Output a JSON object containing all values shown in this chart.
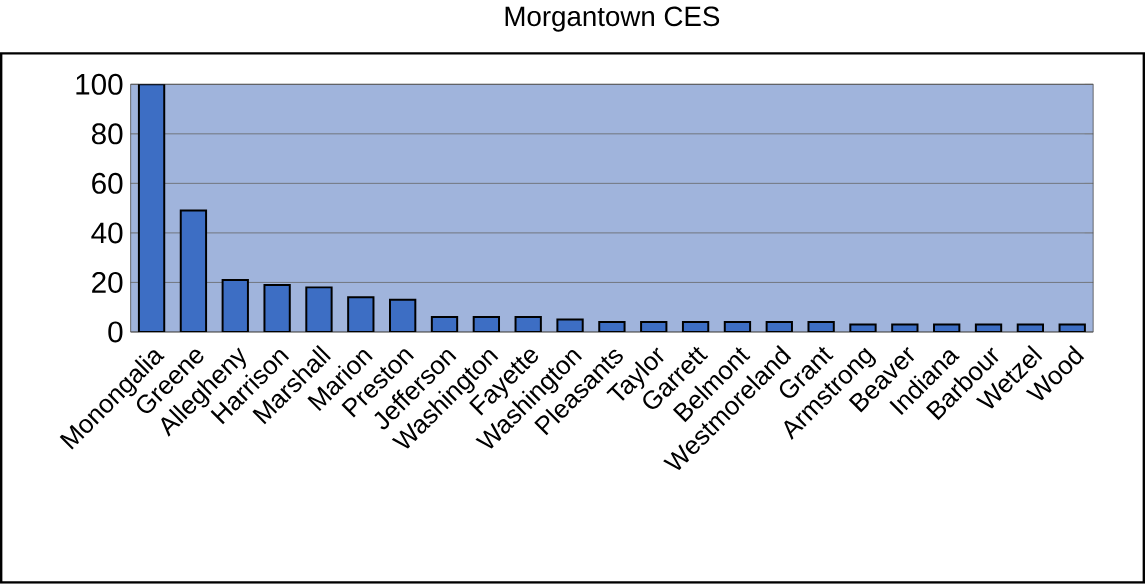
{
  "chart_data": {
    "type": "bar",
    "title": "Morgantown CES",
    "categories": [
      "Monongalia",
      "Greene",
      "Allegheny",
      "Harrison",
      "Marshall",
      "Marion",
      "Preston",
      "Jefferson",
      "Washington",
      "Fayette",
      "Washington",
      "Pleasants",
      "Taylor",
      "Garrett",
      "Belmont",
      "Westmoreland",
      "Grant",
      "Armstrong",
      "Beaver",
      "Indiana",
      "Barbour",
      "Wetzel",
      "Wood"
    ],
    "values": [
      100,
      49,
      21,
      19,
      18,
      14,
      13,
      6,
      6,
      6,
      5,
      4,
      4,
      4,
      4,
      4,
      4,
      3,
      3,
      3,
      3,
      3,
      3
    ],
    "color": "#3d6ec4",
    "ylim": [
      0,
      100
    ],
    "yticks": [
      0,
      20,
      40,
      60,
      80,
      100
    ],
    "grid": "y"
  }
}
